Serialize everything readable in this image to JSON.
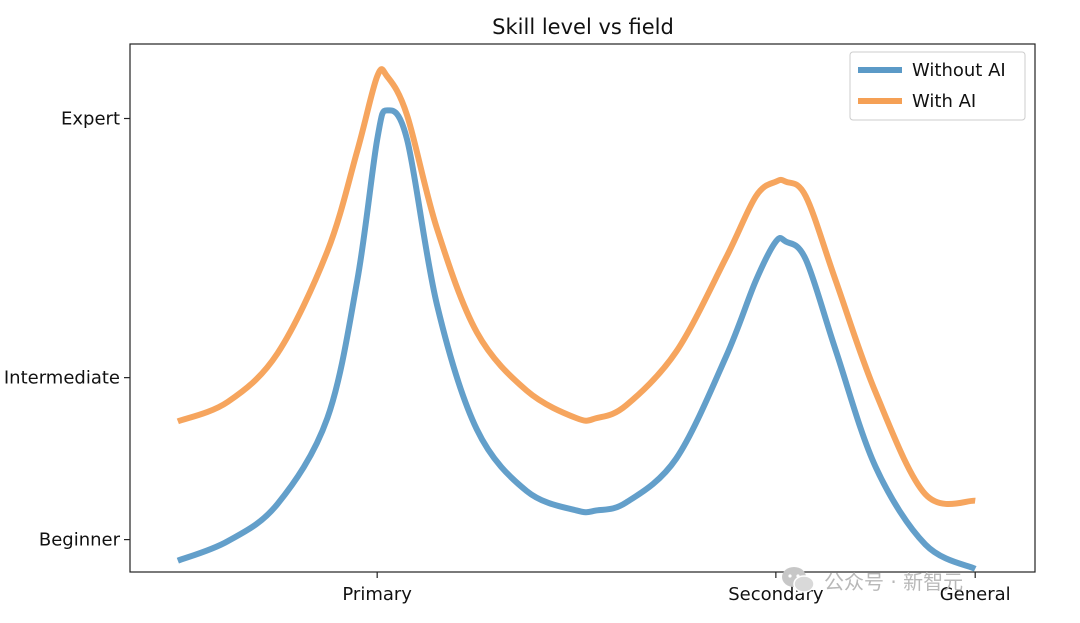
{
  "chart_data": {
    "type": "line",
    "title": "Skill level vs field",
    "xlabel": "",
    "ylabel": "",
    "x_ticks": [
      {
        "label": "Primary",
        "x": 1
      },
      {
        "label": "Secondary",
        "x": 3
      },
      {
        "label": "General",
        "x": 4
      }
    ],
    "y_ticks": [
      {
        "label": "Beginner",
        "y": 1
      },
      {
        "label": "Intermediate",
        "y": 2
      },
      {
        "label": "Expert",
        "y": 3.6
      }
    ],
    "xlim": [
      -0.24,
      4.3
    ],
    "ylim": [
      0.8,
      4.06
    ],
    "legend_position": "top-right",
    "series": [
      {
        "name": "Without AI",
        "color": "#5b9ac7",
        "x": [
          0,
          0.25,
          0.5,
          0.75,
          0.9,
          1,
          1.05,
          1.15,
          1.3,
          1.5,
          1.75,
          2,
          2.1,
          2.25,
          2.5,
          2.75,
          2.9,
          3,
          3.05,
          3.15,
          3.3,
          3.5,
          3.75,
          4
        ],
        "y": [
          0.87,
          0.99,
          1.22,
          1.75,
          2.6,
          3.47,
          3.65,
          3.47,
          2.45,
          1.68,
          1.3,
          1.18,
          1.18,
          1.23,
          1.5,
          2.13,
          2.6,
          2.84,
          2.84,
          2.73,
          2.17,
          1.45,
          0.97,
          0.82
        ]
      },
      {
        "name": "With AI",
        "color": "#f5a055",
        "x": [
          0,
          0.25,
          0.5,
          0.75,
          0.9,
          1,
          1.05,
          1.15,
          1.3,
          1.5,
          1.75,
          2,
          2.1,
          2.25,
          2.5,
          2.75,
          2.9,
          3,
          3.05,
          3.15,
          3.3,
          3.5,
          3.75,
          4
        ],
        "y": [
          1.73,
          1.85,
          2.15,
          2.78,
          3.4,
          3.86,
          3.86,
          3.62,
          2.92,
          2.28,
          1.92,
          1.75,
          1.75,
          1.83,
          2.16,
          2.74,
          3.12,
          3.21,
          3.21,
          3.12,
          2.6,
          1.91,
          1.28,
          1.24
        ]
      }
    ]
  },
  "watermark": {
    "text": "公众号 · 新智元",
    "logo_icon": "wechat-icon"
  }
}
